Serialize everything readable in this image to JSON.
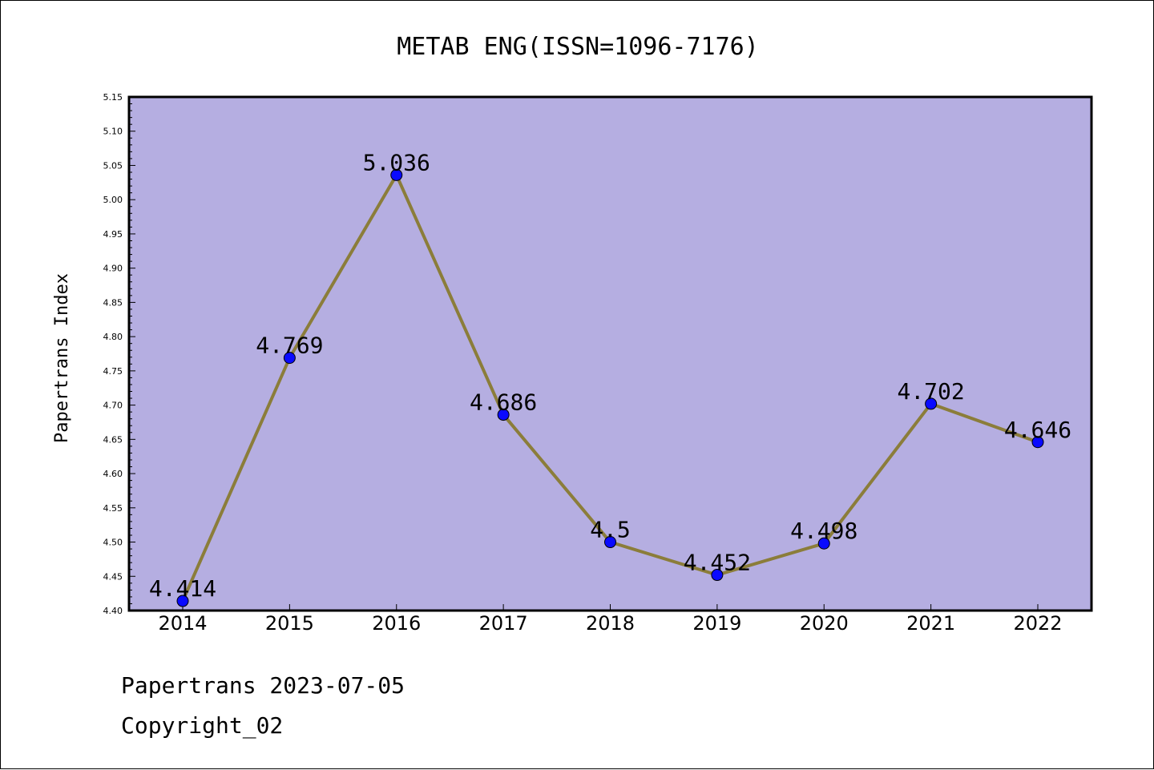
{
  "chart_data": {
    "type": "line",
    "title": "METAB ENG(ISSN=1096-7176)",
    "xlabel": "",
    "ylabel": "Papertrans Index",
    "categories": [
      "2014",
      "2015",
      "2016",
      "2017",
      "2018",
      "2019",
      "2020",
      "2021",
      "2022"
    ],
    "series": [
      {
        "values": [
          4.414,
          4.769,
          5.036,
          4.686,
          4.5,
          4.452,
          4.498,
          4.702,
          4.646
        ],
        "labels": [
          "4.414",
          "4.769",
          "5.036",
          "4.686",
          "4.5",
          "4.452",
          "4.498",
          "4.702",
          "4.646"
        ]
      }
    ],
    "ylim": [
      4.4,
      5.15
    ],
    "yticks": [
      "4.40",
      "4.45",
      "4.50",
      "4.55",
      "4.60",
      "4.65",
      "4.70",
      "4.75",
      "4.80",
      "4.85",
      "4.90",
      "4.95",
      "5.00",
      "5.05",
      "5.10",
      "5.15"
    ],
    "grid": false,
    "colors": {
      "plot_background": "#b5aee1",
      "line": "#8b7d3a",
      "marker": "#0a0aff"
    }
  },
  "footer": {
    "line1": "Papertrans 2023-07-05",
    "line2": "Copyright_02"
  }
}
